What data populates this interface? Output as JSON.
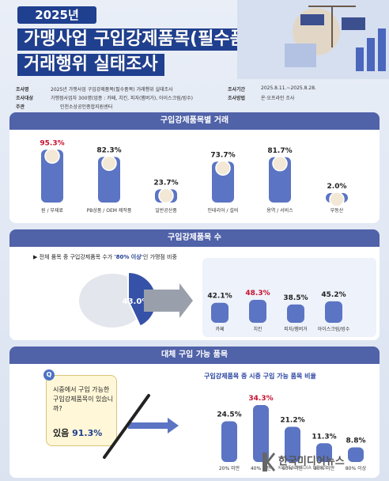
{
  "header": {
    "year": "2025년",
    "title_line1": "가맹사업 구입강제품목(필수품목)",
    "title_line2": "거래행위 실태조사"
  },
  "info": {
    "survey_name_key": "조사명",
    "survey_name": "2025년 가맹사업 구입강제품목(필수품목) 거래행위 실태조사",
    "survey_target_key": "조사대상",
    "survey_target": "가맹점사업자 300명(업종 : 카페, 치킨, 피자(햄버거), 아이스크림/빙수)",
    "host_key": "주관",
    "host": "인천소상공인종합지원센터",
    "period_key": "조사기간",
    "period": "2025.8.11.~2025.8.28.",
    "method_key": "조사방법",
    "method": "온·오프라인 조사"
  },
  "section1": {
    "title": "구입강제품목별 거래"
  },
  "section2": {
    "title": "구입강제품목 수",
    "note_prefix": "전체 품목 중 구입강제품목 수가 ",
    "note_highlight": "'80% 이상'",
    "note_suffix": "인 가맹점 비중",
    "pie_label": "43.0%"
  },
  "section3": {
    "title": "대체 구입 가능 품목",
    "question": "시중에서 구입 가능한 구입강제품목이 있습니까?",
    "q_mark": "Q",
    "answer_prefix": "있음 ",
    "answer_value": "91.3%",
    "chart_title": "구입강제품목 중 시중 구입 가능 품목 비율"
  },
  "logo": {
    "name": "한국미디어뉴스",
    "en": "KOREA MEDIA NEWS"
  },
  "colors": {
    "navy": "#1f3f8f",
    "bar": "#5b74c3",
    "highlight": "#c8102e",
    "panel_header": "#5062a8"
  },
  "chart_data": [
    {
      "type": "bar",
      "title": "구입강제품목별 거래",
      "categories": [
        "원 / 부재료",
        "PB상품 / OEM 제작품",
        "일반공산품",
        "인테리어 / 설비",
        "용역 / 서비스",
        "부동산"
      ],
      "values": [
        95.3,
        82.3,
        23.7,
        73.7,
        81.7,
        2.0
      ],
      "labels": [
        "95.3%",
        "82.3%",
        "23.7%",
        "73.7%",
        "81.7%",
        "2.0%"
      ],
      "highlight_index": 0,
      "ylim": [
        0,
        100
      ]
    },
    {
      "type": "bar",
      "title": "구입강제품목 수",
      "categories": [
        "카페",
        "치킨",
        "피자/햄버거",
        "아이스크림/빙수"
      ],
      "values": [
        42.1,
        48.3,
        38.5,
        45.2
      ],
      "labels": [
        "42.1%",
        "48.3%",
        "38.5%",
        "45.2%"
      ],
      "highlight_index": 1,
      "ylim": [
        0,
        100
      ]
    },
    {
      "type": "pie",
      "values": [
        43.0,
        57.0
      ],
      "labels": [
        "43.0%",
        ""
      ]
    },
    {
      "type": "bar",
      "title": "구입강제품목 중 시중 구입 가능 품목 비율",
      "categories": [
        "20% 미만",
        "40% 미만",
        "60% 미만",
        "80% 미만",
        "80% 이상"
      ],
      "values": [
        24.5,
        34.3,
        21.2,
        11.3,
        8.8
      ],
      "labels": [
        "24.5%",
        "34.3%",
        "21.2%",
        "11.3%",
        "8.8%"
      ],
      "highlight_index": 1,
      "ylim": [
        0,
        40
      ]
    }
  ]
}
